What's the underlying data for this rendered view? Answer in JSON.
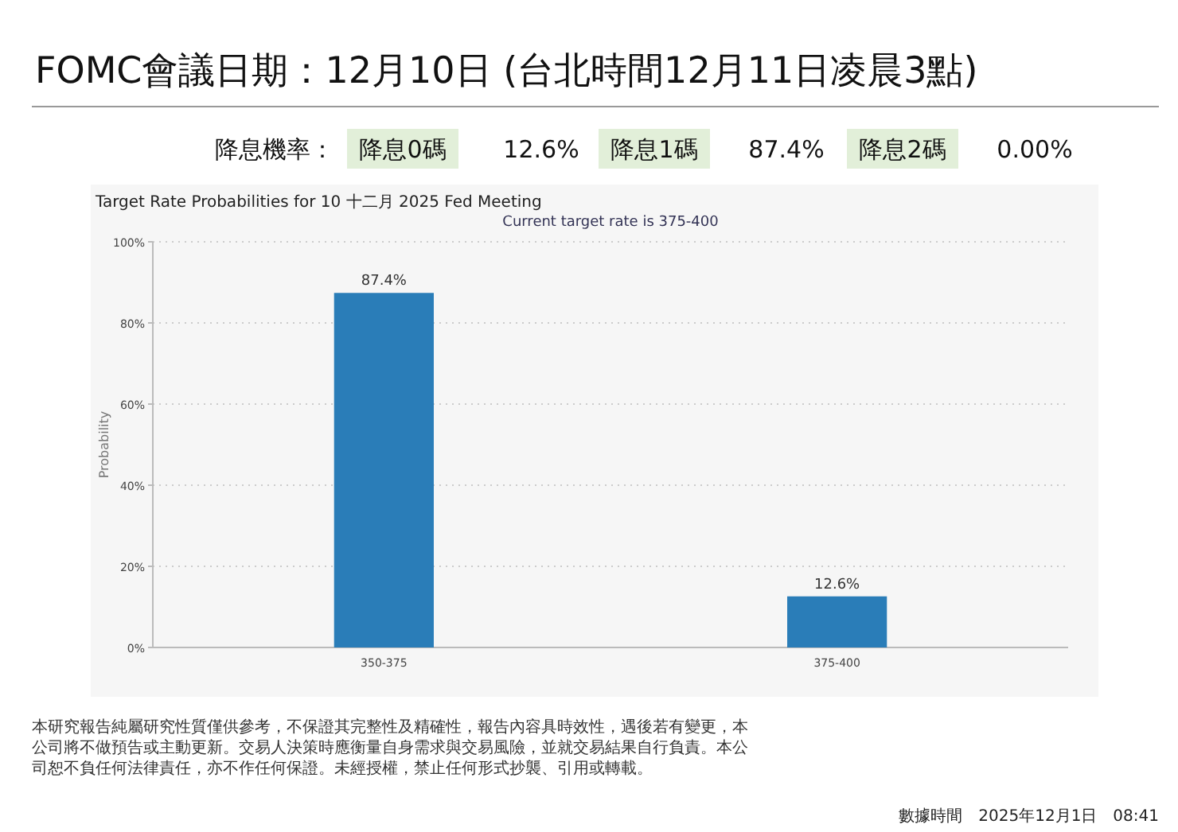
{
  "chart_data": {
    "type": "bar",
    "title": "FOMC會議日期：12月10日 (台北時間12月11日凌晨3點)",
    "subtitle": "Target Rate Probabilities for 10 十二月 2025 Fed Meeting",
    "ylabel": "Probability",
    "annotations": [
      "降息機率：",
      "降息0碼",
      "12.6%",
      "降息1碼",
      "87.4%",
      "降息2碼",
      "0.00%",
      "Current target rate is 375-400",
      "數據時間　2025年12月1日　08:41",
      "本研究報告純屬研究性質僅供參考，不保證其完整性及精確性，報告內容具時效性，遇後若有變更，本公司將不做預告或主動更新。交易人決策時應衡量自身需求與交易風險，並就交易結果自行負責。本公司恕不負任何法律責任，亦不作任何保證。未經授權，禁止任何形式抄襲、引用或轉載。"
    ],
    "categories": [
      "350-375",
      "375-400"
    ],
    "values": [
      87.4,
      12.6
    ],
    "value_labels": [
      "87.4%",
      "12.6%"
    ],
    "color": "#2a7db8",
    "ylim": [
      0,
      100
    ],
    "yticks": [
      {
        "value": 0,
        "label": "0%"
      },
      {
        "value": 20,
        "label": "20%"
      },
      {
        "value": 40,
        "label": "40%"
      },
      {
        "value": 60,
        "label": "60%"
      },
      {
        "value": 80,
        "label": "80%"
      },
      {
        "value": 100,
        "label": "100%"
      }
    ],
    "grid": "y"
  }
}
